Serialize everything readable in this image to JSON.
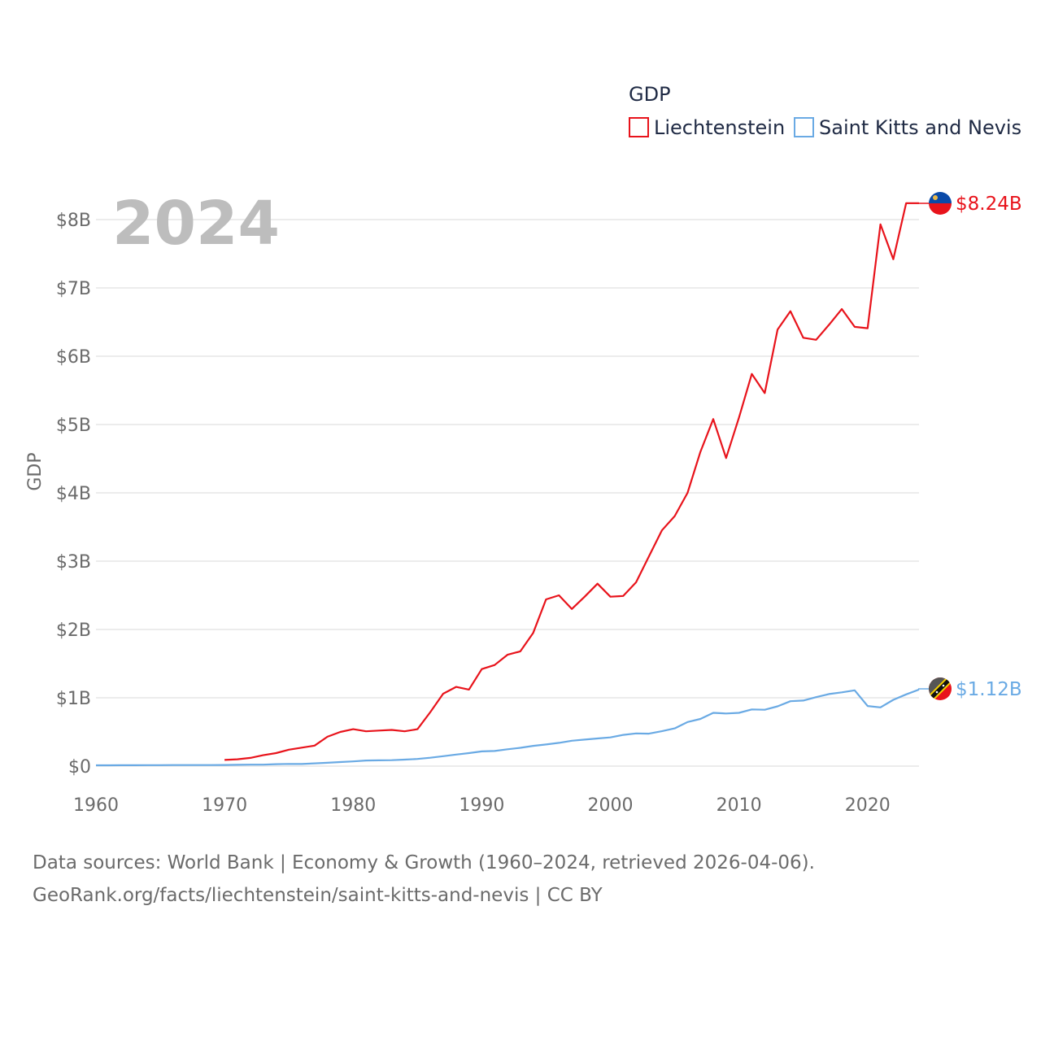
{
  "colors": {
    "liechtenstein": "#e8131b",
    "saint_kitts": "#6aaae4",
    "grid": "#e6e6e6",
    "text": "#6b6b6b"
  },
  "legend": {
    "title": "GDP",
    "items": [
      "Liechtenstein",
      "Saint Kitts and Nevis"
    ]
  },
  "year_label": "2024",
  "end_labels": {
    "liechtenstein": "$8.24B",
    "saint_kitts": "$1.12B"
  },
  "flags": {
    "liechtenstein": "liechtenstein-flag-icon",
    "saint_kitts": "saint-kitts-flag-icon"
  },
  "source": {
    "line1": "Data sources: World Bank | Economy & Growth (1960–2024, retrieved 2026-04-06).",
    "line2": "GeoRank.org/facts/liechtenstein/saint-kitts-and-nevis | CC BY"
  },
  "chart_data": {
    "type": "line",
    "title": "GDP",
    "xlabel": "",
    "ylabel": "GDP",
    "xlim": [
      1960,
      2024
    ],
    "ylim": [
      0,
      8.5
    ],
    "x_ticks": [
      1960,
      1970,
      1980,
      1990,
      2000,
      2010,
      2020
    ],
    "x_tick_labels": [
      "1960",
      "1970",
      "1980",
      "1990",
      "2000",
      "2010",
      "2020"
    ],
    "y_ticks": [
      0,
      1,
      2,
      3,
      4,
      5,
      6,
      7,
      8
    ],
    "y_tick_labels": [
      "$0",
      "$1B",
      "$2B",
      "$3B",
      "$4B",
      "$5B",
      "$6B",
      "$7B",
      "$8B"
    ],
    "grid": true,
    "legend_position": "top-right",
    "units": "billions USD",
    "series": [
      {
        "name": "Liechtenstein",
        "x": [
          1970,
          1971,
          1972,
          1973,
          1974,
          1975,
          1976,
          1977,
          1978,
          1979,
          1980,
          1981,
          1982,
          1983,
          1984,
          1985,
          1986,
          1987,
          1988,
          1989,
          1990,
          1991,
          1992,
          1993,
          1994,
          1995,
          1996,
          1997,
          1998,
          1999,
          2000,
          2001,
          2002,
          2003,
          2004,
          2005,
          2006,
          2007,
          2008,
          2009,
          2010,
          2011,
          2012,
          2013,
          2014,
          2015,
          2016,
          2017,
          2018,
          2019,
          2020,
          2021,
          2022,
          2023,
          2024
        ],
        "values": [
          0.09,
          0.1,
          0.12,
          0.16,
          0.19,
          0.24,
          0.27,
          0.3,
          0.43,
          0.5,
          0.54,
          0.51,
          0.52,
          0.53,
          0.51,
          0.54,
          0.79,
          1.06,
          1.16,
          1.12,
          1.42,
          1.48,
          1.63,
          1.68,
          1.95,
          2.44,
          2.5,
          2.3,
          2.48,
          2.67,
          2.48,
          2.49,
          2.69,
          3.07,
          3.45,
          3.66,
          4.0,
          4.6,
          5.08,
          4.51,
          5.1,
          5.74,
          5.46,
          6.39,
          6.66,
          6.27,
          6.24,
          6.46,
          6.69,
          6.43,
          6.41,
          7.93,
          7.42,
          8.24,
          8.24
        ]
      },
      {
        "name": "Saint Kitts and Nevis",
        "x": [
          1960,
          1961,
          1962,
          1963,
          1964,
          1965,
          1966,
          1967,
          1968,
          1969,
          1970,
          1971,
          1972,
          1973,
          1974,
          1975,
          1976,
          1977,
          1978,
          1979,
          1980,
          1981,
          1982,
          1983,
          1984,
          1985,
          1986,
          1987,
          1988,
          1989,
          1990,
          1991,
          1992,
          1993,
          1994,
          1995,
          1996,
          1997,
          1998,
          1999,
          2000,
          2001,
          2002,
          2003,
          2004,
          2005,
          2006,
          2007,
          2008,
          2009,
          2010,
          2011,
          2012,
          2013,
          2014,
          2015,
          2016,
          2017,
          2018,
          2019,
          2020,
          2021,
          2022,
          2023,
          2024
        ],
        "values": [
          0.012,
          0.012,
          0.013,
          0.013,
          0.014,
          0.014,
          0.015,
          0.016,
          0.016,
          0.016,
          0.017,
          0.019,
          0.021,
          0.022,
          0.028,
          0.032,
          0.031,
          0.041,
          0.049,
          0.059,
          0.069,
          0.082,
          0.085,
          0.087,
          0.095,
          0.105,
          0.123,
          0.145,
          0.169,
          0.191,
          0.215,
          0.222,
          0.246,
          0.268,
          0.296,
          0.317,
          0.34,
          0.372,
          0.388,
          0.405,
          0.42,
          0.457,
          0.479,
          0.475,
          0.511,
          0.552,
          0.645,
          0.69,
          0.78,
          0.77,
          0.78,
          0.83,
          0.825,
          0.875,
          0.95,
          0.96,
          1.01,
          1.055,
          1.08,
          1.11,
          0.88,
          0.86,
          0.97,
          1.05,
          1.12
        ]
      }
    ]
  }
}
